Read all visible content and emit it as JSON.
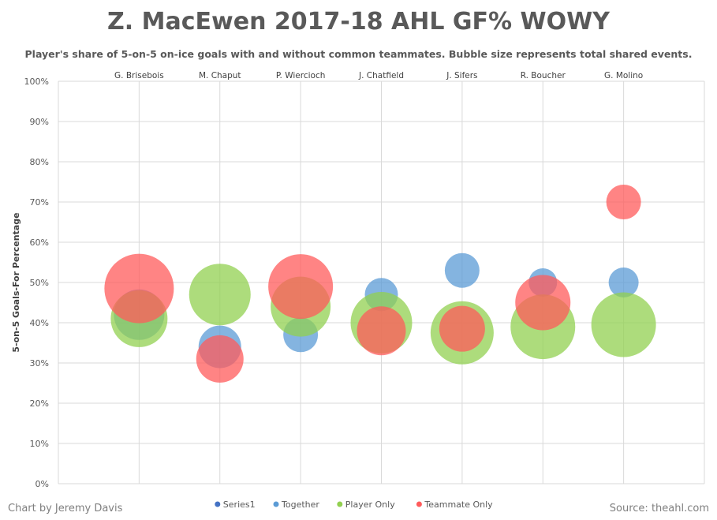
{
  "title": "Z. MacEwen 2017-18 AHL GF% WOWY",
  "subtitle": "Player's share of 5-on-5 on-ice goals with and without common teammates. Bubble size represents total shared events.",
  "credit": "Chart by Jeremy Davis",
  "source": "Source: theahl.com",
  "chart_data": {
    "type": "scatter",
    "title": "Z. MacEwen 2017-18 AHL GF% WOWY",
    "ylabel": "5-on-5 Goals-For  Percentage",
    "xlabel": "",
    "ylim": [
      0,
      100
    ],
    "y_ticks": [
      "0%",
      "10%",
      "20%",
      "30%",
      "40%",
      "50%",
      "60%",
      "70%",
      "80%",
      "90%",
      "100%"
    ],
    "grid": true,
    "legend_position": "bottom",
    "categories": [
      "G. Brisebois",
      "M. Chaput",
      "P. Wiercioch",
      "J. Chatfield",
      "J. Sifers",
      "R. Boucher",
      "G. Molino"
    ],
    "series": [
      {
        "name": "Series1",
        "color": "#4472c4",
        "values": []
      },
      {
        "name": "Together",
        "color": "#5b9bd5",
        "values": [
          42,
          34,
          37,
          47,
          53,
          50,
          50
        ],
        "sizes": [
          32,
          27,
          22,
          21,
          22,
          18,
          19
        ]
      },
      {
        "name": "Player Only",
        "color": "#92d050",
        "values": [
          41,
          47,
          44,
          40,
          37.5,
          39,
          39.5
        ],
        "sizes": [
          36,
          39,
          38,
          39,
          40,
          41,
          41
        ]
      },
      {
        "name": "Teammate Only",
        "color": "#ff5b5b",
        "values": [
          48.5,
          31,
          49,
          38,
          38.5,
          45,
          70
        ],
        "sizes": [
          44,
          30,
          41,
          31,
          29,
          35,
          22
        ]
      }
    ]
  }
}
